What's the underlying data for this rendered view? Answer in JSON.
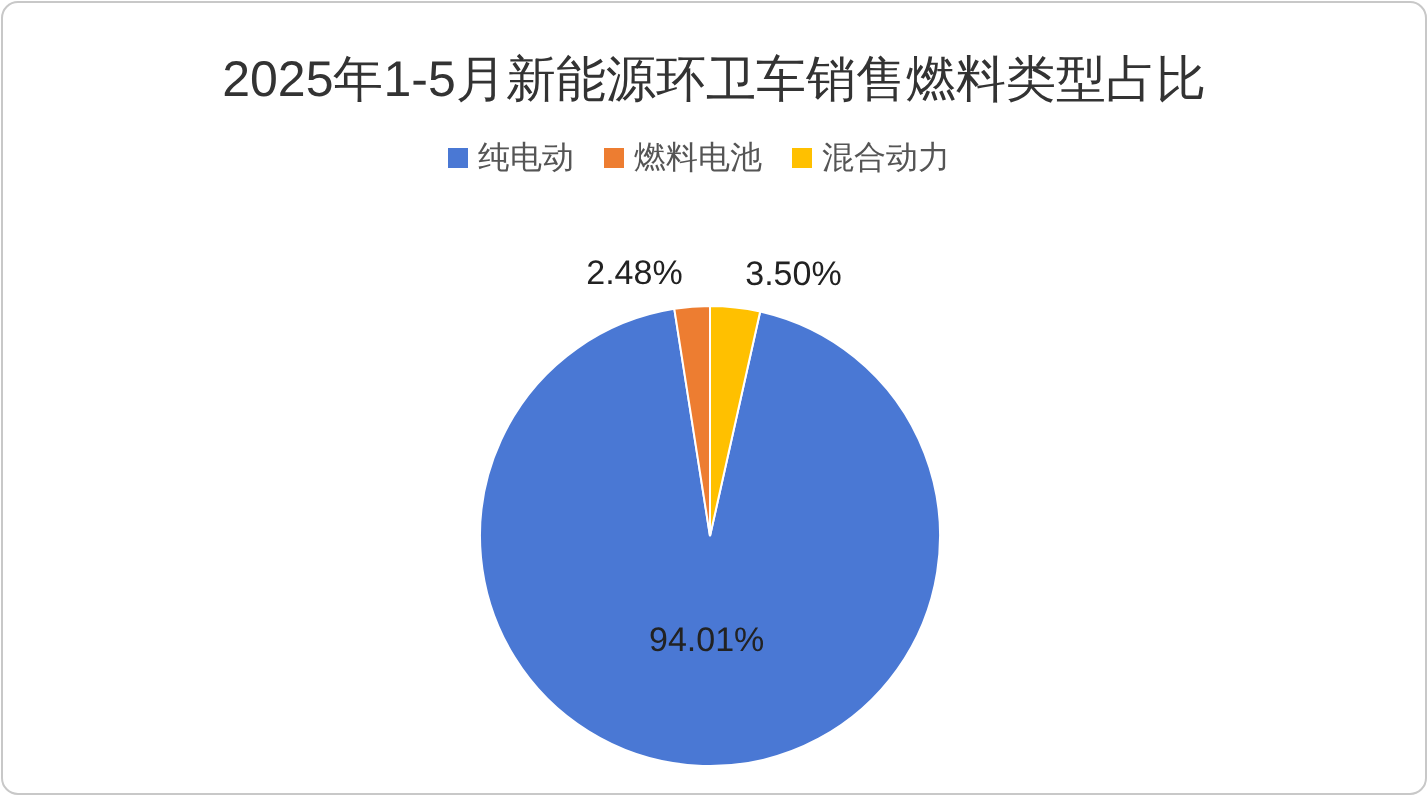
{
  "chart_data": {
    "type": "pie",
    "title": "2025年1-5月新能源环卫车销售燃料类型占比",
    "categories": [
      "纯电动",
      "燃料电池",
      "混合动力"
    ],
    "values": [
      94.01,
      2.48,
      3.5
    ],
    "colors": [
      "#4a78d4",
      "#ed7d31",
      "#ffc000"
    ],
    "value_labels": [
      "94.01%",
      "2.48%",
      "3.50%"
    ],
    "legend": "top"
  }
}
